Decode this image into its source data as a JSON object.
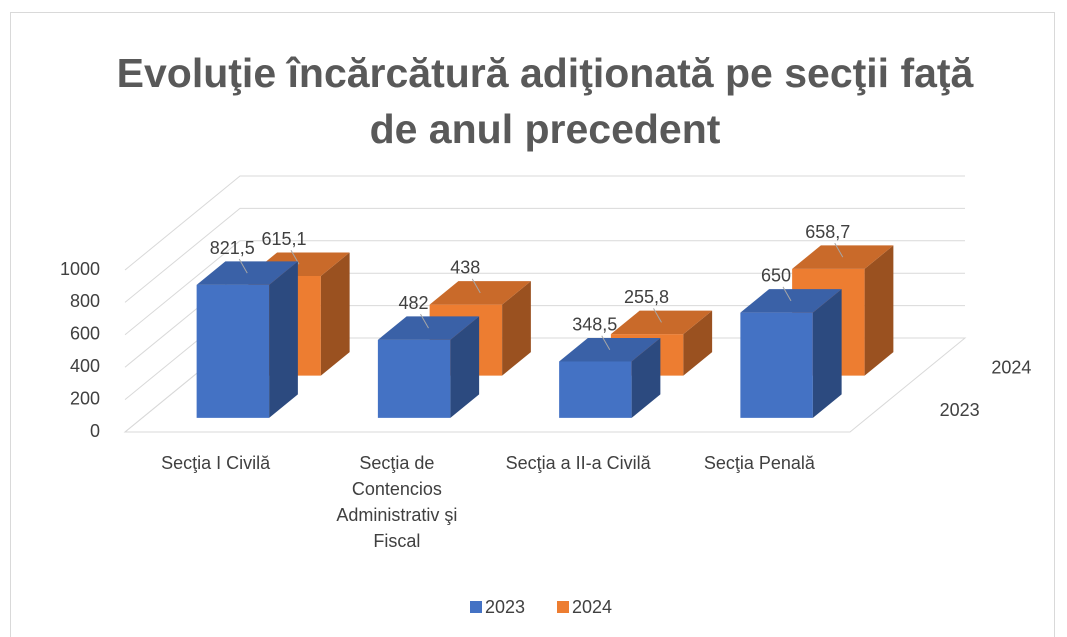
{
  "chart_data": {
    "type": "bar3d",
    "title": "Evoluţie încărcătură adiţionată pe secţii faţă de anul precedent",
    "categories": [
      "Secţia I Civilă",
      "Secţia de Contencios Administrativ şi Fiscal",
      "Secţia a II-a Civilă",
      "Secţia Penală"
    ],
    "series": [
      {
        "name": "2023",
        "color": "#4472c4",
        "values": [
          821.5,
          482,
          348.5,
          650
        ],
        "value_labels": [
          "821,5",
          "482",
          "348,5",
          "650"
        ]
      },
      {
        "name": "2024",
        "color": "#ed7d31",
        "values": [
          615.1,
          438,
          255.8,
          658.7
        ],
        "value_labels": [
          "615,1",
          "438",
          "255,8",
          "658,7"
        ]
      }
    ],
    "ylim": [
      0,
      1000
    ],
    "yticks": [
      0,
      200,
      400,
      600,
      800,
      1000
    ],
    "grid": true,
    "legend": "bottom"
  }
}
